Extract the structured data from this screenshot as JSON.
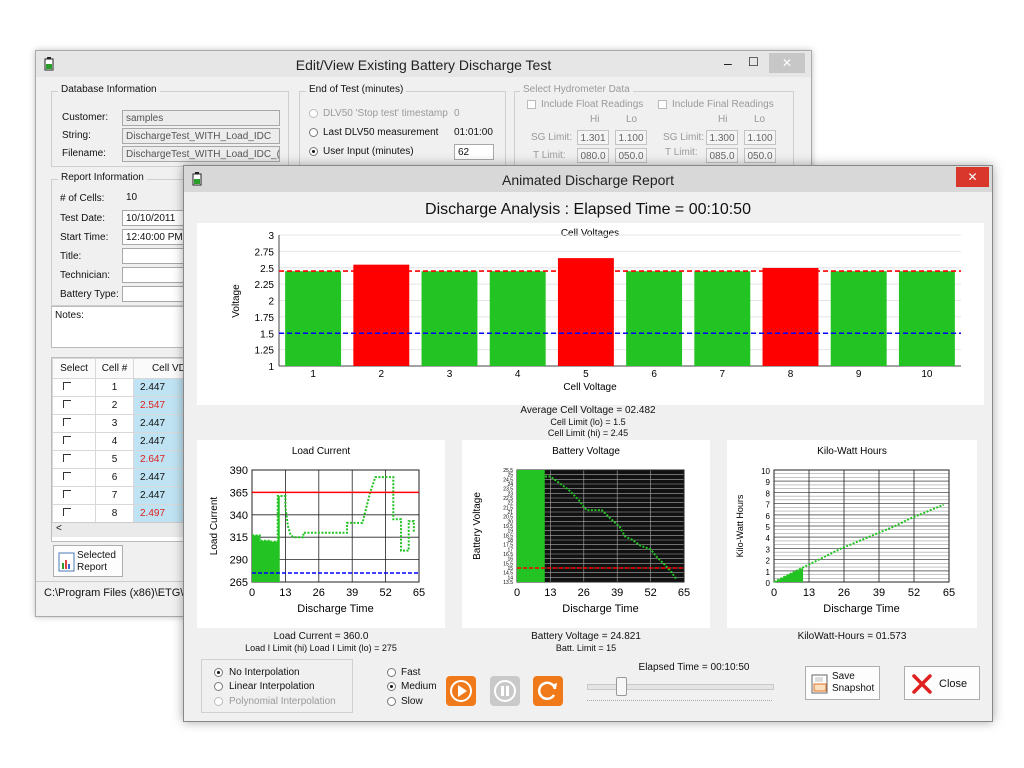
{
  "back_window": {
    "title": "Edit/View Existing Battery Discharge Test",
    "controls": {
      "minimize": "–",
      "maximize": "☐",
      "close": "✕"
    },
    "database": {
      "group_label": "Database Information",
      "customer_label": "Customer:",
      "customer_value": "samples",
      "string_label": "String:",
      "string_value": "DischargeTest_WITH_Load_IDC",
      "filename_label": "Filename:",
      "filename_value": "DischargeTest_WITH_Load_IDC_("
    },
    "end_of_test": {
      "group_label": "End of Test (minutes)",
      "opt1": "DLV50 'Stop test' timestamp",
      "opt1_value": "0",
      "opt2": "Last DLV50 measurement",
      "opt2_value": "01:01:00",
      "opt3": "User Input (minutes)",
      "opt3_value": "62"
    },
    "hydrometer": {
      "group_label": "Select Hydrometer Data",
      "float_label": "Include Float Readings",
      "final_label": "Include Final Readings",
      "hi": "Hi",
      "lo": "Lo",
      "sg_label": "SG Limit:",
      "t_label": "T Limit:",
      "float_sg_hi": "1.301",
      "float_sg_lo": "1.100",
      "float_t_hi": "080.0",
      "float_t_lo": "050.0",
      "final_sg_hi": "1.300",
      "final_sg_lo": "1.100",
      "final_t_hi": "085.0",
      "final_t_lo": "050.0"
    },
    "report": {
      "group_label": "Report Information",
      "cells_label": "# of Cells:",
      "cells_value": "10",
      "date_label": "Test Date:",
      "date_value": "10/10/2011",
      "time_label": "Start Time:",
      "time_value": "12:40:00 PM",
      "title_label": "Title:",
      "tech_label": "Technician:",
      "type_label": "Battery Type:"
    },
    "notes_label": "Notes:",
    "table": {
      "headers": [
        "Select",
        "Cell #",
        "Cell VDC"
      ],
      "rows": [
        {
          "cell": "1",
          "vdc": "2.447",
          "high": false
        },
        {
          "cell": "2",
          "vdc": "2.547",
          "high": true
        },
        {
          "cell": "3",
          "vdc": "2.447",
          "high": false
        },
        {
          "cell": "4",
          "vdc": "2.447",
          "high": false
        },
        {
          "cell": "5",
          "vdc": "2.647",
          "high": true
        },
        {
          "cell": "6",
          "vdc": "2.447",
          "high": false
        },
        {
          "cell": "7",
          "vdc": "2.447",
          "high": false
        },
        {
          "cell": "8",
          "vdc": "2.497",
          "high": true
        }
      ],
      "scroll_left": "<"
    },
    "selected_report_label": "Selected\nReport",
    "status_path": "C:\\Program Files (x86)\\ETG\\"
  },
  "front_window": {
    "title": "Animated Discharge Report",
    "close": "✕",
    "analysis_title": "Discharge Analysis : Elapsed Time = 00:10:50",
    "cell_stats": {
      "avg": "Average Cell Voltage = 02.482",
      "lo": "Cell Limit (lo) = 1.5",
      "hi": "Cell Limit (hi) = 2.45"
    },
    "load_stats": {
      "line1": "Load Current = 360.0",
      "line2": "Load I Limit (hi) Load I Limit (lo) = 275"
    },
    "batt_stats": {
      "line1": "Battery Voltage = 24.821",
      "line2": "Batt. Limit = 15"
    },
    "kwh_stats": {
      "line1": "KiloWatt-Hours = 01.573"
    },
    "interp": {
      "none": "No Interpolation",
      "linear": "Linear Interpolation",
      "poly": "Polynomial Interpolation"
    },
    "speed": {
      "fast": "Fast",
      "medium": "Medium",
      "slow": "Slow"
    },
    "elapsed": "Elapsed Time = 00:10:50",
    "elapsed_fraction": 0.18,
    "save_label": "Save\nSnapshot",
    "close_label": "Close"
  },
  "colors": {
    "green": "#22c322",
    "red": "#ff0000",
    "blue": "#0000ff",
    "accent_orange": "#f07a1a"
  },
  "chart_data": [
    {
      "type": "bar",
      "title": "Cell Voltages",
      "xlabel": "Cell Voltage",
      "ylabel": "Voltage",
      "categories": [
        "1",
        "2",
        "3",
        "4",
        "5",
        "6",
        "7",
        "8",
        "9",
        "10"
      ],
      "values": [
        2.447,
        2.547,
        2.447,
        2.447,
        2.647,
        2.447,
        2.447,
        2.497,
        2.447,
        2.447
      ],
      "bar_colors": [
        "green",
        "red",
        "green",
        "green",
        "red",
        "green",
        "green",
        "red",
        "green",
        "green"
      ],
      "ylim": [
        1,
        3
      ],
      "yticks": [
        "1",
        "1.25",
        "1.5",
        "1.75",
        "2",
        "2.25",
        "2.5",
        "2.75",
        "3"
      ],
      "limits": {
        "hi": 2.45,
        "lo": 1.5
      },
      "grid": true
    },
    {
      "type": "line",
      "title": "Load Current",
      "xlabel": "Discharge Time",
      "ylabel": "Load Current",
      "xlim": [
        0,
        65
      ],
      "ylim": [
        265,
        390
      ],
      "xticks": [
        "0",
        "13",
        "26",
        "39",
        "52",
        "65"
      ],
      "yticks": [
        "265",
        "290",
        "315",
        "340",
        "365",
        "390"
      ],
      "x": [
        0,
        3,
        3,
        7,
        7,
        10,
        10,
        12,
        13,
        13,
        14,
        15,
        16,
        18,
        20,
        20,
        26,
        29,
        29,
        32,
        35,
        37,
        37,
        40,
        43,
        46,
        48,
        49,
        50,
        52,
        53,
        55,
        55,
        58,
        58,
        61,
        61,
        63,
        63
      ],
      "y": [
        317,
        317,
        311,
        311,
        310,
        310,
        361,
        361,
        361,
        349,
        327,
        318,
        315,
        315,
        315,
        320,
        320,
        320,
        320,
        320,
        320,
        320,
        331,
        331,
        331,
        365,
        382,
        382,
        382,
        382,
        382,
        382,
        335,
        335,
        300,
        300,
        333,
        333,
        320
      ],
      "progress_x": 10.8,
      "limits": {
        "hi": 365,
        "lo": 275
      },
      "grid": true
    },
    {
      "type": "line",
      "title": "Battery Voltage",
      "xlabel": "Discharge Time",
      "ylabel": "Battery Voltage",
      "xlim": [
        0,
        65
      ],
      "ylim": [
        13.5,
        25.5
      ],
      "xticks": [
        "0",
        "13",
        "26",
        "39",
        "52",
        "65"
      ],
      "yticks": [
        "13.5",
        "14",
        "14.5",
        "15",
        "15.5",
        "16",
        "16.5",
        "17",
        "17.5",
        "18",
        "18.5",
        "19",
        "19.5",
        "20",
        "20.5",
        "21",
        "21.5",
        "22",
        "22.5",
        "23",
        "23.5",
        "24",
        "24.5",
        "25",
        "25.5"
      ],
      "x": [
        0,
        8,
        13,
        17,
        20,
        24,
        27,
        30,
        33,
        36,
        40,
        42,
        45,
        48,
        52,
        55,
        57,
        60,
        62
      ],
      "y": [
        24.8,
        24.8,
        24.8,
        24.0,
        23.4,
        22.3,
        21.2,
        21.2,
        21.2,
        20.4,
        19.4,
        18.4,
        18.0,
        17.4,
        17.0,
        16.0,
        15.5,
        14.6,
        13.8
      ],
      "progress_x": 10.8,
      "limits": {
        "lo": 15
      },
      "grid": true
    },
    {
      "type": "line",
      "title": "Kilo-Watt Hours",
      "xlabel": "Discharge Time",
      "ylabel": "Kilo-Watt Hours",
      "xlim": [
        0,
        65
      ],
      "ylim": [
        0,
        10
      ],
      "xticks": [
        "0",
        "13",
        "26",
        "39",
        "52",
        "65"
      ],
      "yticks": [
        "0",
        "1",
        "2",
        "3",
        "4",
        "5",
        "6",
        "7",
        "8",
        "9",
        "10"
      ],
      "x": [
        0,
        5,
        10,
        15,
        20,
        25,
        30,
        35,
        40,
        45,
        50,
        55,
        60,
        63
      ],
      "y": [
        0.0,
        0.6,
        1.2,
        1.8,
        2.4,
        3.0,
        3.5,
        4.0,
        4.5,
        5.0,
        5.6,
        6.1,
        6.6,
        6.9
      ],
      "progress_x": 10.8,
      "grid": true
    }
  ]
}
